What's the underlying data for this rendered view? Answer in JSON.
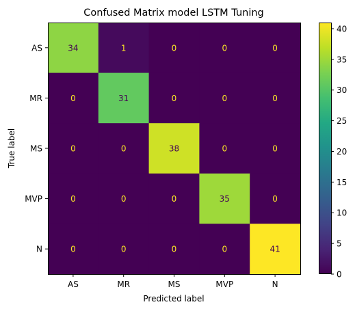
{
  "chart_data": {
    "type": "heatmap",
    "title": "Confused Matrix model LSTM Tuning",
    "xlabel": "Predicted label",
    "ylabel": "True label",
    "x_categories": [
      "AS",
      "MR",
      "MS",
      "MVP",
      "N"
    ],
    "y_categories": [
      "AS",
      "MR",
      "MS",
      "MVP",
      "N"
    ],
    "matrix": [
      [
        34,
        1,
        0,
        0,
        0
      ],
      [
        0,
        31,
        0,
        0,
        0
      ],
      [
        0,
        0,
        38,
        0,
        0
      ],
      [
        0,
        0,
        0,
        35,
        0
      ],
      [
        0,
        0,
        0,
        0,
        41
      ]
    ],
    "colormap": "viridis",
    "vmin": 0,
    "vmax": 41,
    "colorbar": {
      "ticks": [
        0,
        5,
        10,
        15,
        20,
        25,
        30,
        35,
        40
      ]
    },
    "annotation_colors": {
      "light": "#fde725",
      "dark": "#440154"
    }
  }
}
